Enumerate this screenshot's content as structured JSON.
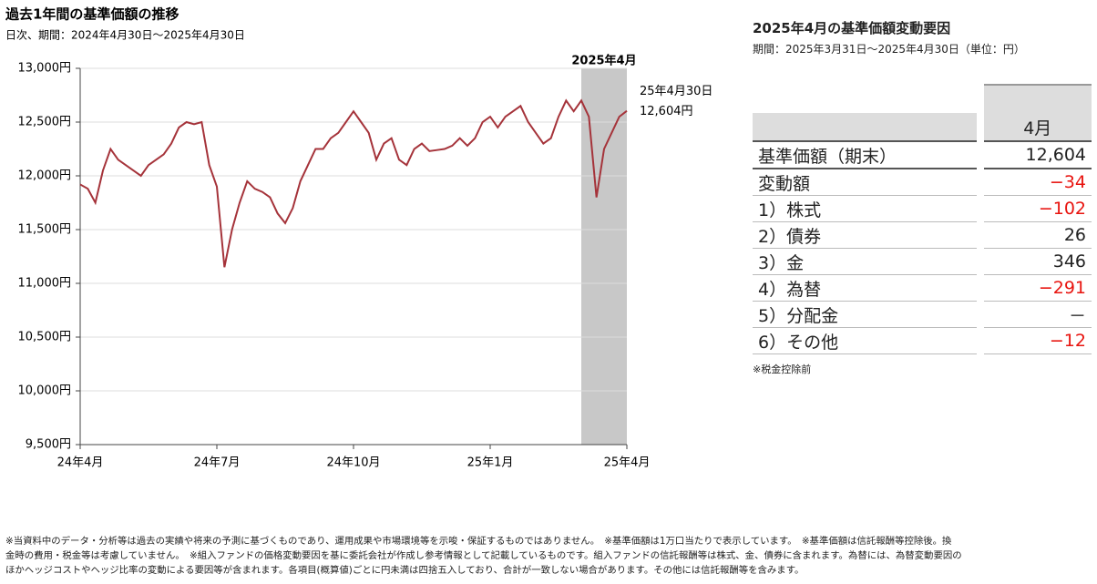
{
  "chart_data": {
    "type": "line",
    "title": "過去1年間の基準価額の推移",
    "subtitle": "日次、期間：2024年4月30日～2025年4月30日",
    "color": "#a5333a",
    "categories": [
      "24年4月",
      null,
      null,
      null,
      null,
      null,
      null,
      null,
      null,
      null,
      null,
      null,
      null,
      null,
      null,
      null,
      null,
      null,
      "24年7月",
      null,
      null,
      null,
      null,
      null,
      null,
      null,
      null,
      null,
      null,
      null,
      null,
      null,
      null,
      null,
      null,
      null,
      "24年10月",
      null,
      null,
      null,
      null,
      null,
      null,
      null,
      null,
      null,
      null,
      null,
      null,
      null,
      null,
      null,
      null,
      null,
      "25年1月",
      null,
      null,
      null,
      null,
      null,
      null,
      null,
      null,
      null,
      null,
      null,
      null,
      null,
      null,
      null,
      null,
      null,
      "25年4月"
    ],
    "values": [
      11920,
      11880,
      11750,
      12050,
      12250,
      12150,
      12100,
      12050,
      12000,
      12100,
      12150,
      12200,
      12300,
      12450,
      12500,
      12480,
      12500,
      12100,
      11900,
      11150,
      11500,
      11750,
      11950,
      11880,
      11850,
      11800,
      11650,
      11560,
      11700,
      11950,
      12100,
      12250,
      12250,
      12350,
      12400,
      12500,
      12600,
      12500,
      12400,
      12150,
      12300,
      12350,
      12150,
      12100,
      12250,
      12300,
      12230,
      12240,
      12250,
      12280,
      12350,
      12280,
      12350,
      12500,
      12550,
      12450,
      12550,
      12600,
      12650,
      12500,
      12400,
      12300,
      12350,
      12550,
      12700,
      12600,
      12700,
      12550,
      11800,
      12250,
      12400,
      12550,
      12604
    ],
    "ylim": [
      9500,
      13000
    ],
    "yticks": [
      {
        "value": 9500,
        "label": "9,500円"
      },
      {
        "value": 10000,
        "label": "10,000円"
      },
      {
        "value": 10500,
        "label": "10,500円"
      },
      {
        "value": 11000,
        "label": "11,000円"
      },
      {
        "value": 11500,
        "label": "11,500円"
      },
      {
        "value": 12000,
        "label": "12,000円"
      },
      {
        "value": 12500,
        "label": "12,500円"
      },
      {
        "value": 13000,
        "label": "13,000円"
      }
    ],
    "grid": true,
    "highlight_label": "2025年4月",
    "end_date": "25年4月30日",
    "end_value_label": "12,604円"
  },
  "table": {
    "title": "2025年4月の基準価額変動要因",
    "subtitle": "期間：2025年3月31日～2025年4月30日（単位：円）",
    "header": "4月",
    "rows": [
      [
        "基準価額（期末）",
        "12,604"
      ],
      [
        "変動額",
        "−34"
      ],
      [
        "1）株式",
        "−102"
      ],
      [
        "2）債券",
        "26"
      ],
      [
        "3）金",
        "346"
      ],
      [
        "4）為替",
        "−291"
      ],
      [
        "5）分配金",
        "－"
      ],
      [
        "6）その他",
        "−12"
      ]
    ],
    "note": "※税金控除前"
  },
  "footer": [
    "※当資料中のデータ・分析等は過去の実績や将来の予測に基づくものであり、運用成果や市場環境等を示唆・保証するものではありません。　※基準価額は1万口当たりで表示しています。　※基準価額は信託報酬等控除後。換",
    "金時の費用・税金等は考慮していません。　※組入ファンドの価格変動要因を基に委託会社が作成し参考情報として記載しているものです。組入ファンドの信託報酬等は株式、金、債券に含まれます。為替には、為替変動要因の",
    "ほかヘッジコストやヘッジ比率の変動による要因等が含まれます。各項目(概算値)ごとに円未満は四捨五入しており、合計が一致しない場合があります。その他には信託報酬等を含みます。"
  ]
}
